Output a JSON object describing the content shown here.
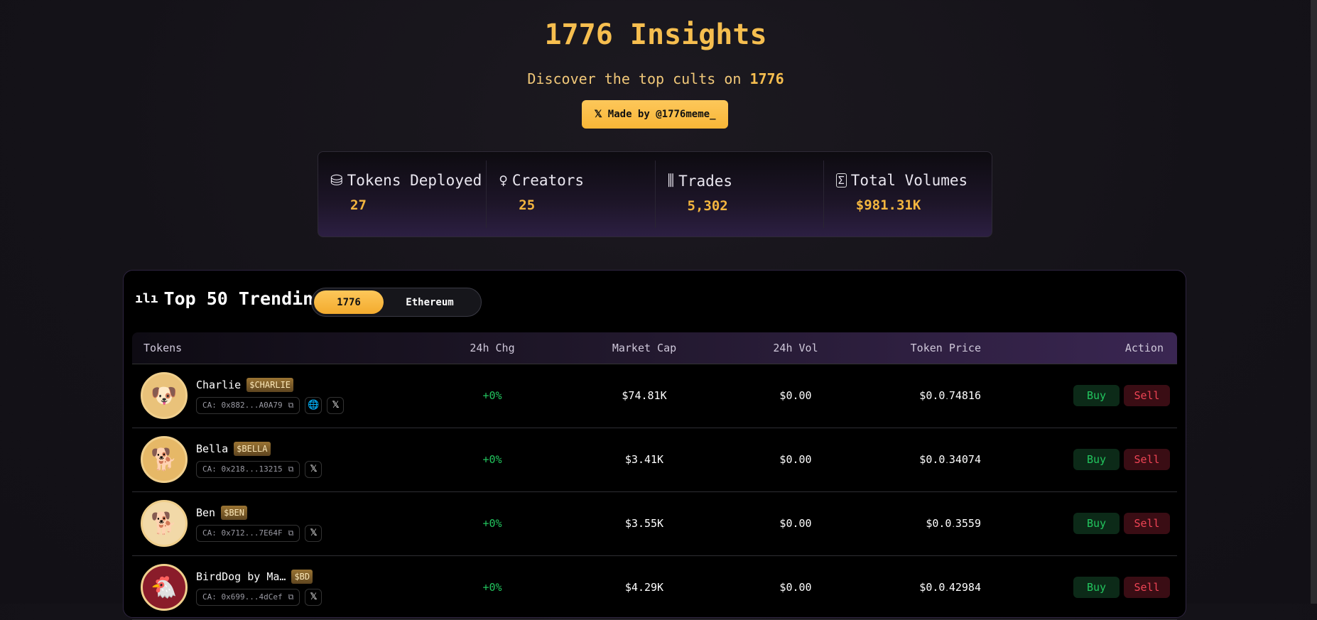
{
  "header": {
    "title": "1776 Insights",
    "subtitle_prefix": "Discover the top cults on ",
    "subtitle_brand": "1776",
    "made_by": "Made by @1776meme_"
  },
  "stats": [
    {
      "icon": "coins-icon",
      "label": "Tokens Deployed",
      "value": "27"
    },
    {
      "icon": "lightbulb-icon",
      "label": "Creators",
      "value": "25"
    },
    {
      "icon": "candlestick-icon",
      "label": "Trades",
      "value": "5,302"
    },
    {
      "icon": "sigma-icon",
      "label": "Total Volumes",
      "value": "$981.31K"
    }
  ],
  "trending": {
    "title": "Top 50 Trending",
    "tabs": [
      "1776",
      "Ethereum"
    ],
    "active_tab": "1776",
    "columns": [
      "Tokens",
      "24h Chg",
      "Market Cap",
      "24h Vol",
      "Token Price",
      "Action"
    ],
    "rows": [
      {
        "name": "Charlie",
        "ticker": "$CHARLIE",
        "ca": "CA: 0x882...A0A79",
        "chg": "+0%",
        "mcap": "$74.81K",
        "vol": "$0.00",
        "price_main": "$0.0",
        "price_sub": ".",
        "price_rest": "74816",
        "links": [
          "globe",
          "x"
        ]
      },
      {
        "name": "Bella",
        "ticker": "$BELLA",
        "ca": "CA: 0x218...13215",
        "chg": "+0%",
        "mcap": "$3.41K",
        "vol": "$0.00",
        "price_main": "$0.0",
        "price_sub": ".",
        "price_rest": "34074",
        "links": [
          "x"
        ]
      },
      {
        "name": "Ben",
        "ticker": "$BEN",
        "ca": "CA: 0x712...7E64F",
        "chg": "+0%",
        "mcap": "$3.55K",
        "vol": "$0.00",
        "price_main": "$0.0",
        "price_sub": ".",
        "price_rest": "3559",
        "links": [
          "x"
        ]
      },
      {
        "name": "BirdDog by Ma…",
        "ticker": "$BD",
        "ca": "CA: 0x699...4dCef",
        "chg": "+0%",
        "mcap": "$4.29K",
        "vol": "$0.00",
        "price_main": "$0.0",
        "price_sub": ".",
        "price_rest": "42984",
        "links": [
          "x"
        ]
      }
    ],
    "buy_label": "Buy",
    "sell_label": "Sell"
  },
  "colors": {
    "accent": "#f6be4f",
    "positive": "#22c55e",
    "negative": "#ef4455"
  }
}
